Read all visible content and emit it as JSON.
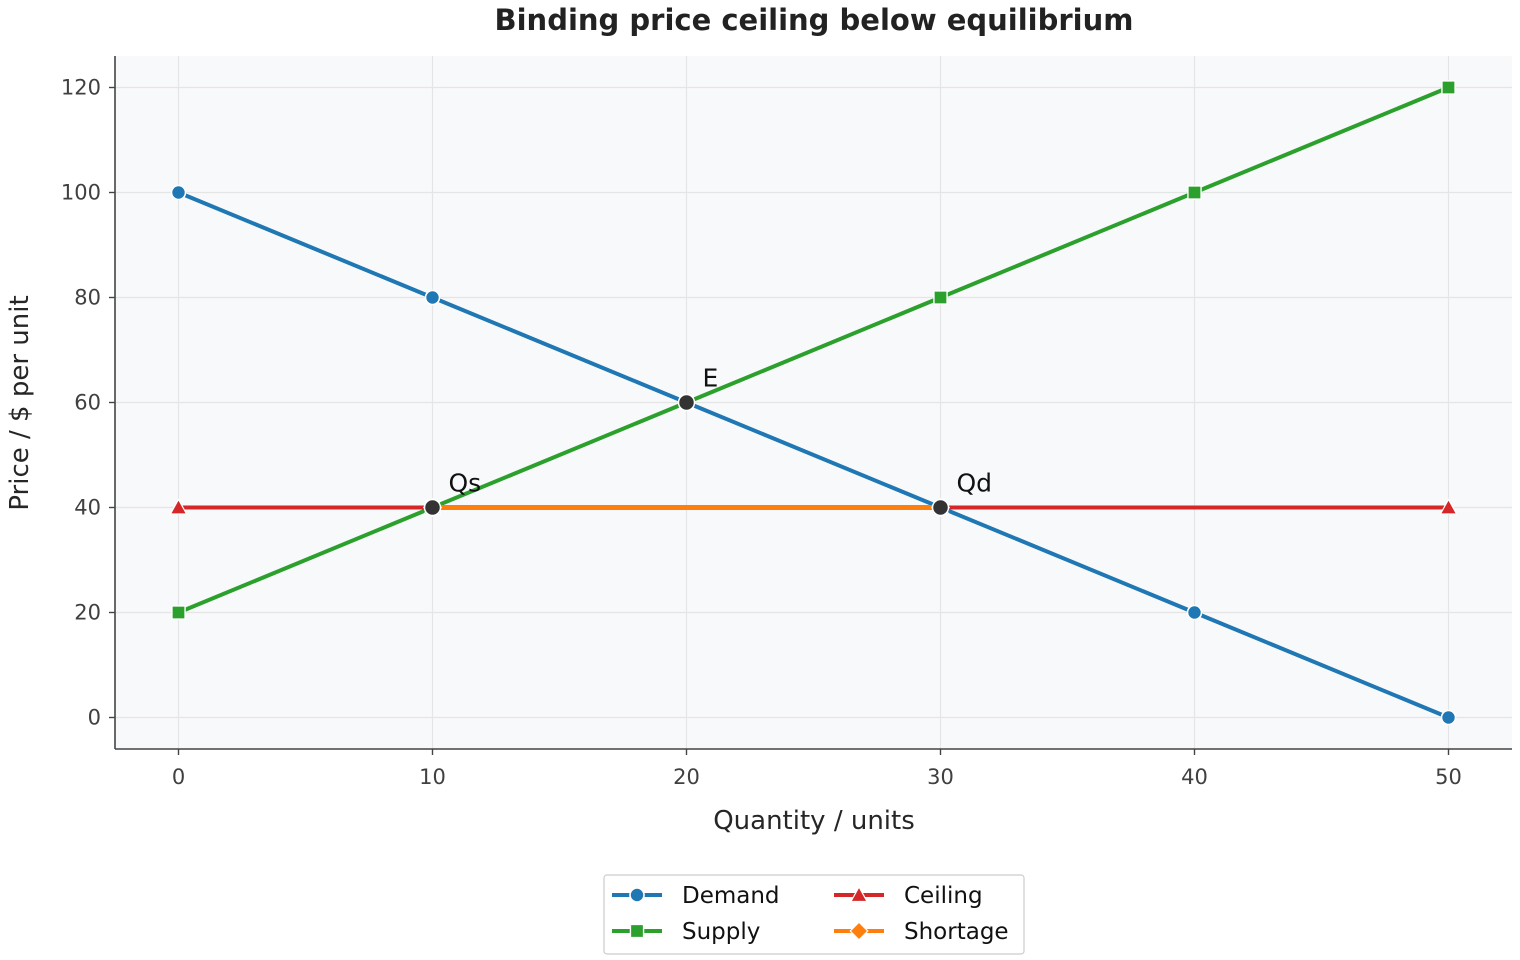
{
  "chart_data": {
    "type": "line",
    "title": "Binding price ceiling below equilibrium",
    "xlabel": "Quantity / units",
    "ylabel": "Price / $ per unit",
    "xlim": [
      -2.5,
      52.5
    ],
    "ylim": [
      -6,
      126
    ],
    "xticks": [
      0,
      10,
      20,
      30,
      40,
      50
    ],
    "yticks": [
      0,
      20,
      40,
      60,
      80,
      100,
      120
    ],
    "grid": true,
    "legend_position": "bottom-center",
    "series": [
      {
        "name": "Demand",
        "color": "#1f77b4",
        "marker": "circle",
        "x": [
          0,
          10,
          20,
          30,
          40,
          50
        ],
        "y": [
          100,
          80,
          60,
          40,
          20,
          0
        ]
      },
      {
        "name": "Supply",
        "color": "#2ca02c",
        "marker": "square",
        "x": [
          0,
          10,
          20,
          30,
          40,
          50
        ],
        "y": [
          20,
          40,
          60,
          80,
          100,
          120
        ]
      },
      {
        "name": "Ceiling",
        "color": "#d62728",
        "marker": "triangle",
        "x": [
          0,
          10,
          30,
          50
        ],
        "y": [
          40,
          40,
          40,
          40
        ]
      },
      {
        "name": "Shortage",
        "color": "#ff7f0e",
        "marker": "diamond",
        "x": [
          10,
          30
        ],
        "y": [
          40,
          40
        ]
      }
    ],
    "annotations": [
      {
        "text": "E",
        "x": 20,
        "y": 60
      },
      {
        "text": "Qs",
        "x": 10,
        "y": 40
      },
      {
        "text": "Qd",
        "x": 30,
        "y": 40
      }
    ]
  },
  "colors": {
    "plot_background": "#f8f9fa",
    "grid": "#e5e5e5",
    "axis": "#444444",
    "point_marker": "#333333"
  }
}
